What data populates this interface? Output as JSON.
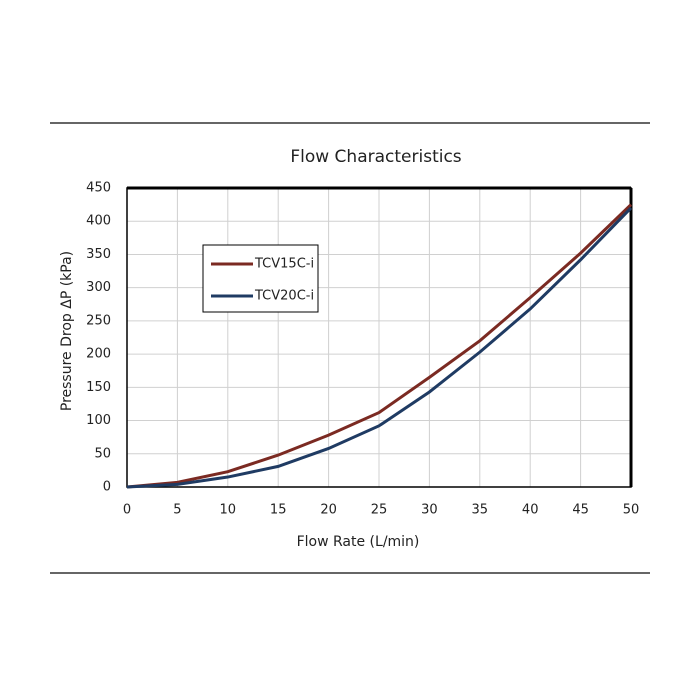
{
  "chart_data": {
    "type": "line",
    "title": "Flow Characteristics",
    "x_label": "Flow Rate (L/min)",
    "y_label": "Pressure Drop ΔP (kPa)",
    "x": [
      0,
      5,
      10,
      15,
      20,
      25,
      30,
      35,
      40,
      45,
      50
    ],
    "series": [
      {
        "name": "TCV15C-i",
        "color": "#7b2a22",
        "values": [
          0,
          7,
          23,
          48,
          78,
          112,
          165,
          220,
          285,
          352,
          425
        ]
      },
      {
        "name": "TCV20C-i",
        "color": "#1f3b63",
        "values": [
          0,
          4,
          15,
          31,
          58,
          92,
          143,
          203,
          268,
          342,
          420
        ]
      }
    ],
    "xlim": [
      0,
      50
    ],
    "xticks": [
      0,
      5,
      10,
      15,
      20,
      25,
      30,
      35,
      40,
      45,
      50
    ],
    "ylim": [
      0,
      450
    ],
    "yticks": [
      0,
      50,
      100,
      150,
      200,
      250,
      300,
      350,
      400,
      450
    ],
    "grid": true,
    "legend": "upper left"
  }
}
